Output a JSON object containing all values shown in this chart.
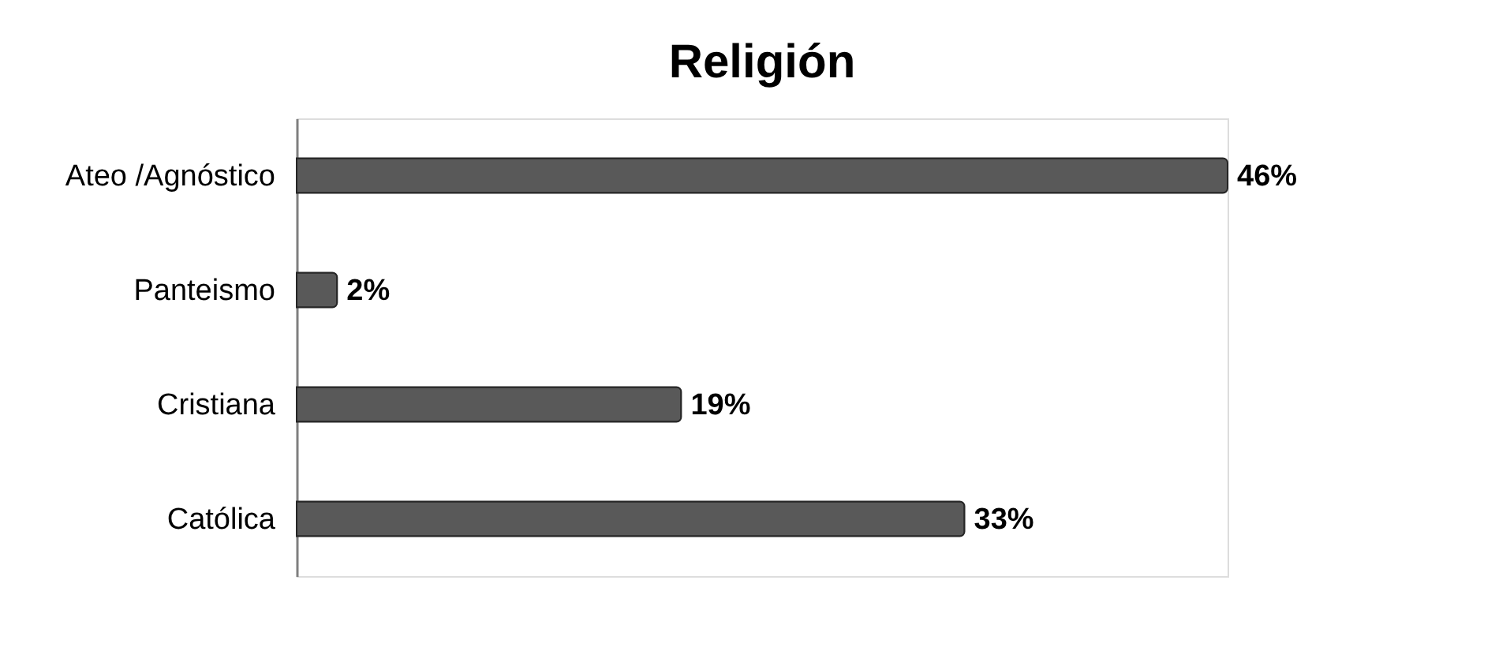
{
  "chart_data": {
    "type": "bar",
    "orientation": "horizontal",
    "title": "Religión",
    "categories": [
      "Ateo /Agnóstico",
      "Panteismo",
      "Cristiana",
      "Católica"
    ],
    "values": [
      46,
      2,
      19,
      33
    ],
    "value_labels": [
      "46%",
      "2%",
      "19%",
      "33%"
    ],
    "color": "#595959"
  }
}
